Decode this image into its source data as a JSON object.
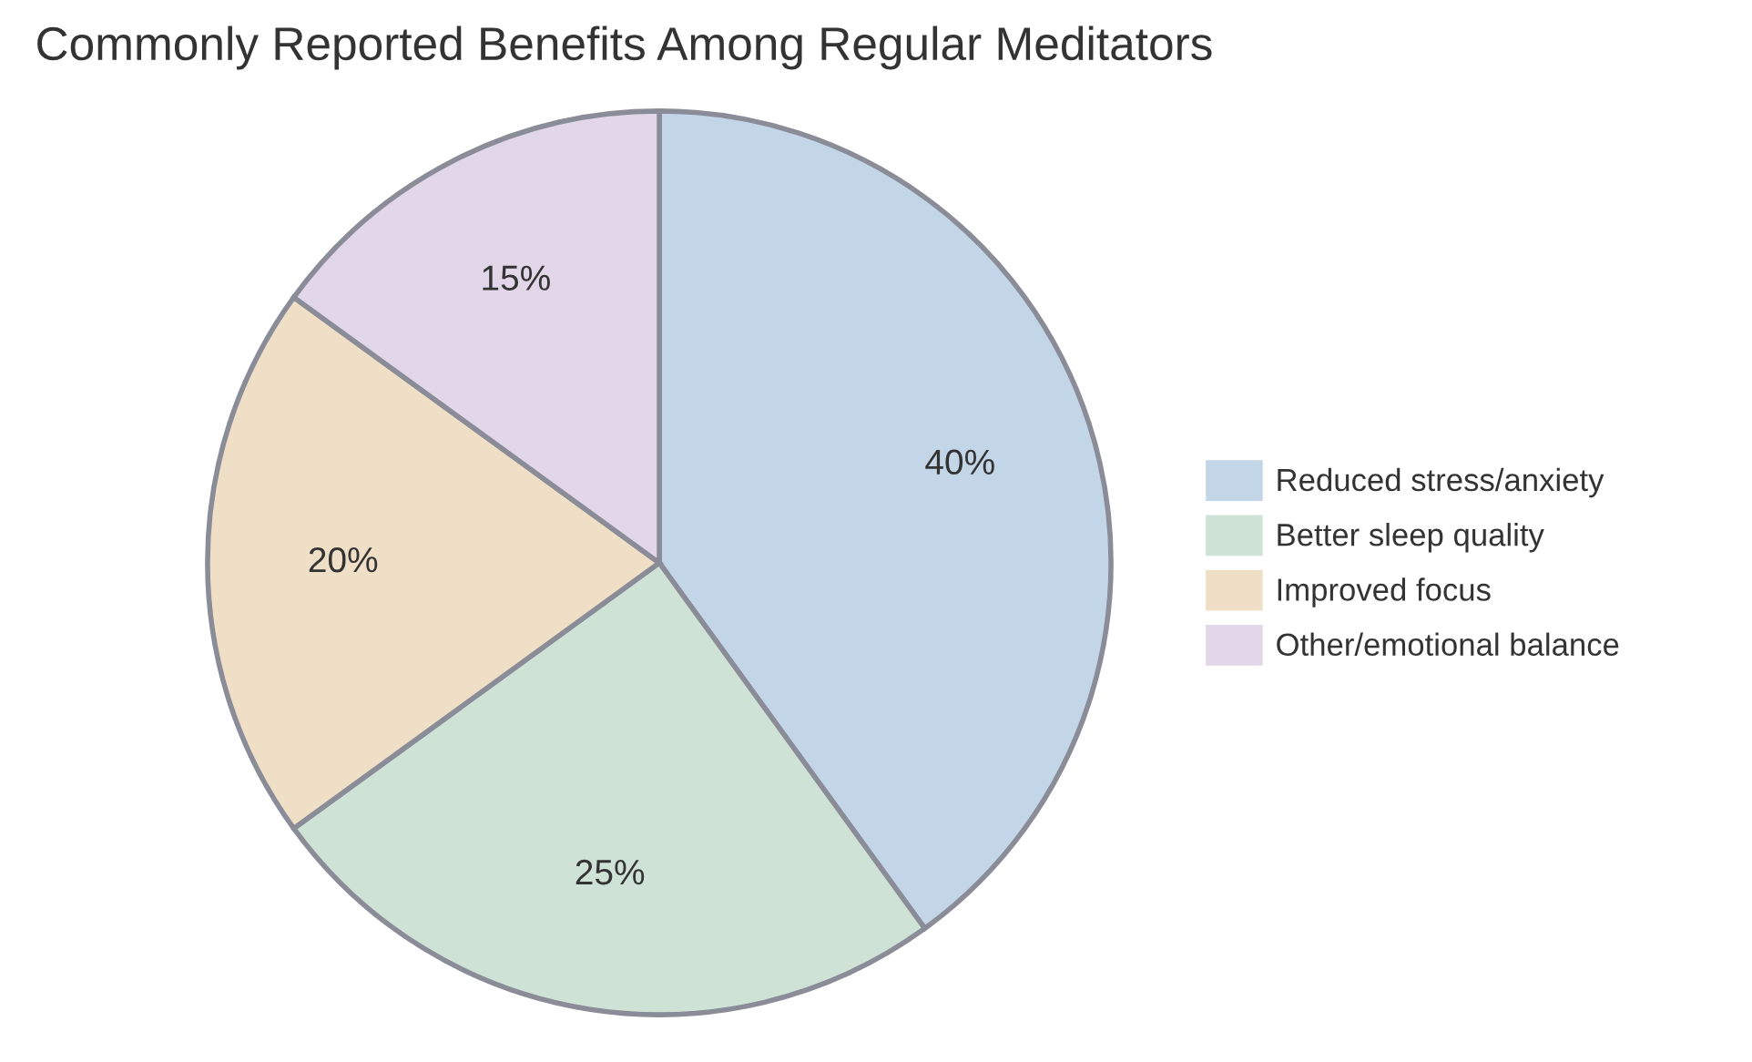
{
  "chart_data": {
    "type": "pie",
    "title": "Commonly Reported Benefits Among Regular Meditators",
    "categories": [
      "Reduced stress/anxiety",
      "Better sleep quality",
      "Improved focus",
      "Other/emotional balance"
    ],
    "values": [
      40,
      25,
      20,
      15
    ],
    "colors": [
      "#c3d6e8",
      "#cfe2d6",
      "#eedfc6",
      "#e2d6e9"
    ],
    "value_labels": [
      "40%",
      "25%",
      "20%",
      "15%"
    ],
    "legend": "right"
  }
}
